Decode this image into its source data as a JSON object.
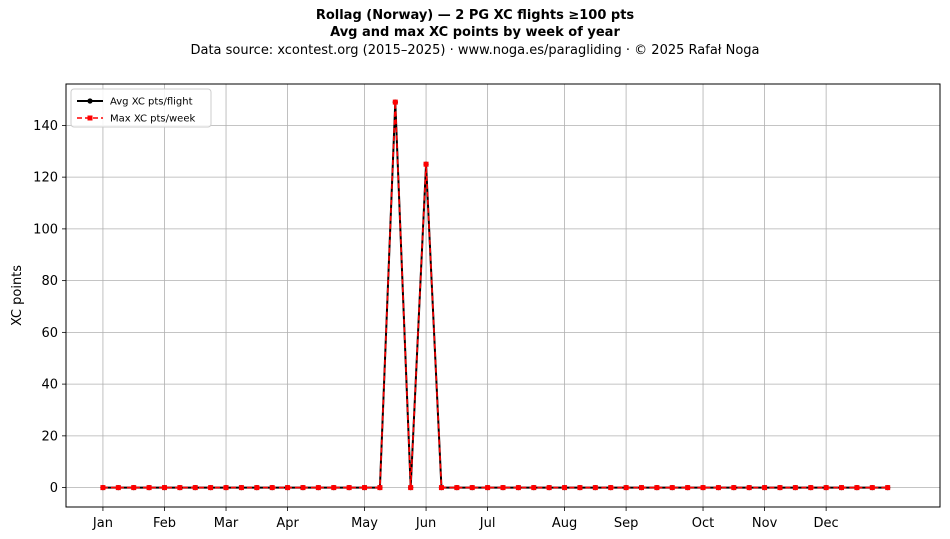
{
  "title": "Rollag (Norway)  —  2 PG XC flights ≥100 pts",
  "subtitle": "Avg and max XC points by week of year",
  "source_line": "Data source: xcontest.org (2015–2025)  ·  www.noga.es/paragliding  ·  © 2025 Rafał Noga",
  "chart_data": {
    "type": "line",
    "title": "Rollag (Norway)  —  2 PG XC flights ≥100 pts",
    "subtitle": "Avg and max XC points by week of year",
    "xlabel": "",
    "ylabel": "XC points",
    "ylim": [
      -7.5,
      156
    ],
    "xlim": [
      -2.4,
      54.4
    ],
    "grid": true,
    "legend_position": "top-left",
    "yticks": [
      0,
      20,
      40,
      60,
      80,
      100,
      120,
      140
    ],
    "xticks": [
      {
        "label": "Jan",
        "x": 0
      },
      {
        "label": "Feb",
        "x": 4
      },
      {
        "label": "Mar",
        "x": 8
      },
      {
        "label": "Apr",
        "x": 12
      },
      {
        "label": "May",
        "x": 17
      },
      {
        "label": "Jun",
        "x": 21
      },
      {
        "label": "Jul",
        "x": 25
      },
      {
        "label": "Aug",
        "x": 30
      },
      {
        "label": "Sep",
        "x": 34
      },
      {
        "label": "Oct",
        "x": 39
      },
      {
        "label": "Nov",
        "x": 43
      },
      {
        "label": "Dec",
        "x": 47
      }
    ],
    "x": [
      0,
      1,
      2,
      3,
      4,
      5,
      6,
      7,
      8,
      9,
      10,
      11,
      12,
      13,
      14,
      15,
      16,
      17,
      18,
      19,
      20,
      21,
      22,
      23,
      24,
      25,
      26,
      27,
      28,
      29,
      30,
      31,
      32,
      33,
      34,
      35,
      36,
      37,
      38,
      39,
      40,
      41,
      42,
      43,
      44,
      45,
      46,
      47,
      48,
      49,
      50,
      51
    ],
    "series": [
      {
        "name": "Avg XC pts/flight",
        "color": "#000000",
        "style": "solid",
        "marker": "circle",
        "values": [
          0,
          0,
          0,
          0,
          0,
          0,
          0,
          0,
          0,
          0,
          0,
          0,
          0,
          0,
          0,
          0,
          0,
          0,
          0,
          149,
          0,
          125,
          0,
          0,
          0,
          0,
          0,
          0,
          0,
          0,
          0,
          0,
          0,
          0,
          0,
          0,
          0,
          0,
          0,
          0,
          0,
          0,
          0,
          0,
          0,
          0,
          0,
          0,
          0,
          0,
          0,
          0
        ]
      },
      {
        "name": "Max XC pts/week",
        "color": "#ff0000",
        "style": "dashed",
        "marker": "square",
        "values": [
          0,
          0,
          0,
          0,
          0,
          0,
          0,
          0,
          0,
          0,
          0,
          0,
          0,
          0,
          0,
          0,
          0,
          0,
          0,
          149,
          0,
          125,
          0,
          0,
          0,
          0,
          0,
          0,
          0,
          0,
          0,
          0,
          0,
          0,
          0,
          0,
          0,
          0,
          0,
          0,
          0,
          0,
          0,
          0,
          0,
          0,
          0,
          0,
          0,
          0,
          0,
          0
        ]
      }
    ]
  }
}
